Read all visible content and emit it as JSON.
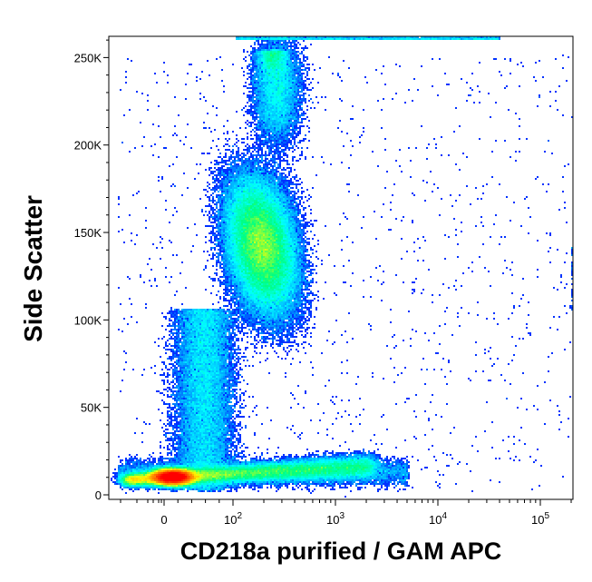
{
  "chart_data": {
    "type": "scatter",
    "subtype": "flow-cytometry-density-dot-plot",
    "xlabel": "CD218a purified / GAM APC",
    "ylabel": "Side Scatter",
    "x_scale": "biexponential",
    "y_scale": "linear",
    "ylim": [
      0,
      262144
    ],
    "y_ticks": [
      {
        "value": 0,
        "label": "0"
      },
      {
        "value": 50000,
        "label": "50K"
      },
      {
        "value": 100000,
        "label": "100K"
      },
      {
        "value": 150000,
        "label": "150K"
      },
      {
        "value": 200000,
        "label": "200K"
      },
      {
        "value": 250000,
        "label": "250K"
      }
    ],
    "x_ticks": [
      {
        "value": 0,
        "label": "0",
        "sup": ""
      },
      {
        "value": 100,
        "label": "10",
        "sup": "2"
      },
      {
        "value": 1000,
        "label": "10",
        "sup": "3"
      },
      {
        "value": 10000,
        "label": "10",
        "sup": "4"
      },
      {
        "value": 100000,
        "label": "10",
        "sup": "5"
      }
    ],
    "populations": [
      {
        "name": "low-SSC cluster",
        "x_center": 0,
        "y_center": 10000,
        "density": "peak"
      },
      {
        "name": "high-SSC cluster",
        "x_center": 200,
        "y_center": 140000,
        "density": "peak"
      },
      {
        "name": "low-SSC tail",
        "x_range": [
          40,
          3000
        ],
        "y_center": 15000,
        "density": "medium"
      }
    ],
    "colormap": [
      "#0000ff",
      "#00a0ff",
      "#00ffff",
      "#00ff80",
      "#ffff00",
      "#ff8000",
      "#ff0000"
    ],
    "frame_color": "#000000"
  }
}
